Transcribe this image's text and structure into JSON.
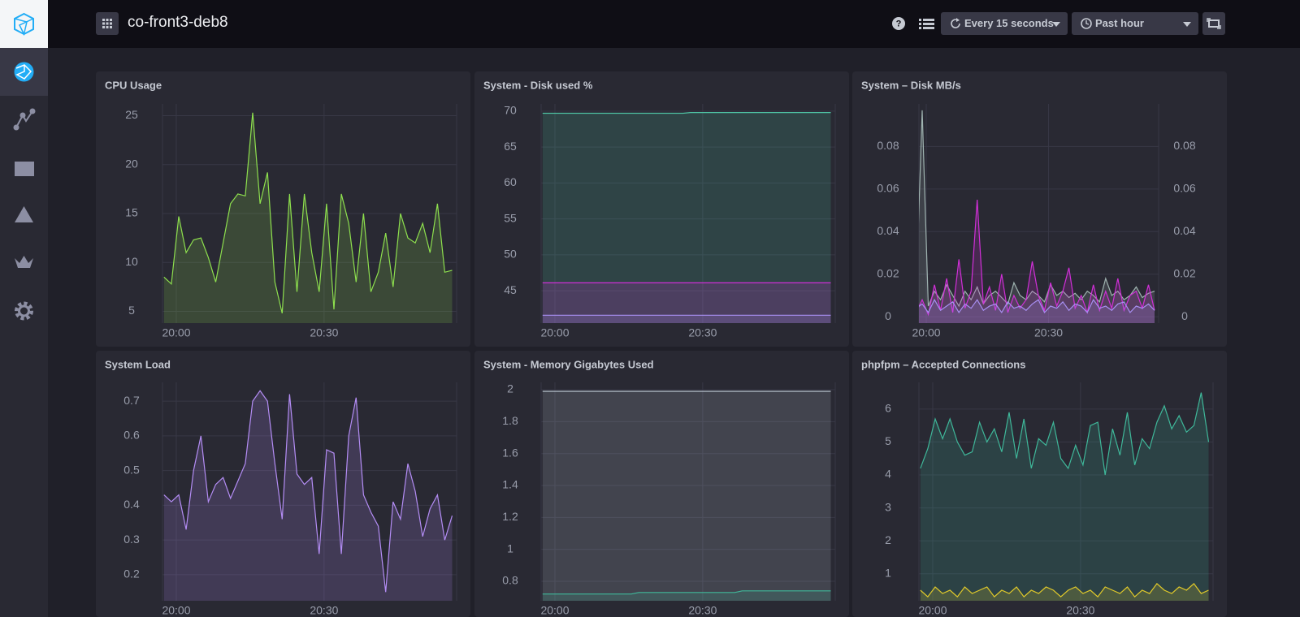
{
  "header": {
    "title": "co-front3-deb8",
    "refresh": "Every 15 seconds",
    "range": "Past hour"
  },
  "chart_data": [
    {
      "type": "line",
      "title": "CPU Usage",
      "fill": true,
      "grid": true,
      "x": [
        -2.5,
        -1,
        0.5,
        2,
        3.5,
        5,
        6.5,
        8,
        9.5,
        11,
        12.5,
        14,
        15.5,
        17,
        18.5,
        20,
        21.5,
        23,
        24.5,
        26,
        27.5,
        29,
        30.5,
        32,
        33.5,
        35,
        36.5,
        38,
        39.5,
        41,
        42.5,
        44,
        45.5,
        47,
        48.5,
        50,
        51.5,
        53,
        54.5,
        56
      ],
      "xlim": [
        -2.8,
        56.9
      ],
      "xticks": [
        {
          "value": 0,
          "label": "20:00"
        },
        {
          "value": 30,
          "label": "20:30"
        }
      ],
      "ylim": [
        3.8,
        26.2
      ],
      "yticks": [
        5,
        10,
        15,
        20,
        25
      ],
      "series": [
        {
          "color": "#8ee04e",
          "values": [
            8.5,
            7.8,
            14.7,
            11,
            12.3,
            12.5,
            10.5,
            8,
            12,
            16,
            17,
            16.8,
            25.3,
            16,
            19.2,
            8,
            4.8,
            17,
            7,
            17,
            11,
            7,
            16,
            5.2,
            17,
            14,
            8,
            15,
            7,
            9,
            13,
            7.5,
            15,
            12.5,
            12,
            14,
            11,
            16,
            9,
            9.2
          ]
        }
      ]
    },
    {
      "type": "line",
      "title": "System - Disk used %",
      "fill": true,
      "grid": true,
      "x": [
        -2.5,
        -1,
        0.5,
        2,
        3.5,
        5,
        6.5,
        8,
        9.5,
        11,
        12.5,
        14,
        15.5,
        17,
        18.5,
        20,
        21.5,
        23,
        24.5,
        26,
        27.5,
        29,
        30.5,
        32,
        33.5,
        35,
        36.5,
        38,
        39.5,
        41,
        42.5,
        44,
        45.5,
        47,
        48.5,
        50,
        51.5,
        53,
        54.5,
        56
      ],
      "xlim": [
        -2.8,
        56.9
      ],
      "xticks": [
        {
          "value": 0,
          "label": "20:00"
        },
        {
          "value": 30,
          "label": "20:30"
        }
      ],
      "ylim": [
        40.5,
        71
      ],
      "yticks": [
        45,
        50,
        55,
        60,
        65,
        70
      ],
      "series": [
        {
          "color": "#4fc2a3",
          "values": [
            69.7,
            69.7,
            69.7,
            69.7,
            69.7,
            69.7,
            69.7,
            69.7,
            69.7,
            69.7,
            69.7,
            69.7,
            69.7,
            69.7,
            69.7,
            69.7,
            69.7,
            69.7,
            69.7,
            69.7,
            69.8,
            69.8,
            69.8,
            69.8,
            69.8,
            69.8,
            69.8,
            69.8,
            69.8,
            69.8,
            69.8,
            69.8,
            69.8,
            69.8,
            69.8,
            69.8,
            69.8,
            69.8,
            69.8,
            69.8
          ]
        },
        {
          "color": "#d12fd8",
          "values": [
            46.1,
            46.1,
            46.1,
            46.1,
            46.1,
            46.1,
            46.1,
            46.1,
            46.1,
            46.1,
            46.1,
            46.1,
            46.1,
            46.1,
            46.1,
            46.1,
            46.1,
            46.1,
            46.1,
            46.1,
            46.1,
            46.1,
            46.1,
            46.1,
            46.1,
            46.1,
            46.1,
            46.1,
            46.1,
            46.1,
            46.1,
            46.1,
            46.1,
            46.1,
            46.1,
            46.1,
            46.1,
            46.1,
            46.1,
            46.1
          ]
        },
        {
          "color": "#a88ff2",
          "values": [
            41.6,
            41.6,
            41.6,
            41.6,
            41.6,
            41.6,
            41.6,
            41.6,
            41.6,
            41.6,
            41.6,
            41.6,
            41.6,
            41.6,
            41.6,
            41.6,
            41.6,
            41.6,
            41.6,
            41.6,
            41.6,
            41.6,
            41.6,
            41.6,
            41.6,
            41.6,
            41.6,
            41.6,
            41.6,
            41.6,
            41.6,
            41.6,
            41.6,
            41.6,
            41.6,
            41.6,
            41.6,
            41.6,
            41.6,
            41.6
          ]
        }
      ]
    },
    {
      "type": "line",
      "title": "System – Disk MB/s",
      "fill": true,
      "grid": true,
      "x": [
        -2.5,
        -1,
        0.5,
        2,
        3.5,
        5,
        6.5,
        8,
        9.5,
        11,
        12.5,
        14,
        15.5,
        17,
        18.5,
        20,
        21.5,
        23,
        24.5,
        26,
        27.5,
        29,
        30.5,
        32,
        33.5,
        35,
        36.5,
        38,
        39.5,
        41,
        42.5,
        44,
        45.5,
        47,
        48.5,
        50,
        51.5,
        53,
        54.5,
        56
      ],
      "xlim": [
        -1.8,
        57
      ],
      "xticks": [
        {
          "value": 0,
          "label": "20:00"
        },
        {
          "value": 30,
          "label": "20:30"
        }
      ],
      "ylim": [
        -0.003,
        0.1
      ],
      "yticks": [
        0,
        0.02,
        0.04,
        0.06,
        0.08
      ],
      "y2lim": [
        -0.003,
        0.1
      ],
      "y2ticks": [
        0,
        0.02,
        0.04,
        0.06,
        0.08
      ],
      "series": [
        {
          "color": "#9fb3b0",
          "values": [
            0.01,
            0.097,
            0.005,
            0.012,
            0.008,
            0.015,
            0.01,
            0.005,
            0.012,
            0.008,
            0.014,
            0.006,
            0.01,
            0.012,
            0.009,
            0.006,
            0.016,
            0.01,
            0.008,
            0.012,
            0.01,
            0.007,
            0.015,
            0.01,
            0.012,
            0.009,
            0.011,
            0.008,
            0.012,
            0.01,
            0.007,
            0.018,
            0.01,
            0.012,
            0.008,
            0.01,
            0.014,
            0.009,
            0.011,
            0.012
          ]
        },
        {
          "color": "#d12fd8",
          "values": [
            0.002,
            0.008,
            0.001,
            0.015,
            0.003,
            0.018,
            0.002,
            0.027,
            0.004,
            0.012,
            0.055,
            0.006,
            0.014,
            0.003,
            0.02,
            0.002,
            0.01,
            0.004,
            0.008,
            0.026,
            0.01,
            0.003,
            0.016,
            0.005,
            0.012,
            0.023,
            0.004,
            0.01,
            0.002,
            0.015,
            0.003,
            0.012,
            0.004,
            0.018,
            0.003,
            0.01,
            0.012,
            0.004,
            0.015,
            0.003
          ]
        },
        {
          "color": "#a88ff2",
          "values": [
            0.004,
            0.006,
            0.002,
            0.008,
            0.003,
            0.005,
            0.007,
            0.002,
            0.006,
            0.004,
            0.008,
            0.003,
            0.005,
            0.006,
            0.002,
            0.007,
            0.004,
            0.005,
            0.003,
            0.006,
            0.008,
            0.002,
            0.005,
            0.004,
            0.007,
            0.003,
            0.006,
            0.005,
            0.002,
            0.008,
            0.004,
            0.005,
            0.003,
            0.006,
            0.007,
            0.002,
            0.005,
            0.004,
            0.006,
            0.003
          ]
        }
      ]
    },
    {
      "type": "line",
      "title": "System Load",
      "fill": true,
      "grid": true,
      "x": [
        -2.5,
        -1,
        0.5,
        2,
        3.5,
        5,
        6.5,
        8,
        9.5,
        11,
        12.5,
        14,
        15.5,
        17,
        18.5,
        20,
        21.5,
        23,
        24.5,
        26,
        27.5,
        29,
        30.5,
        32,
        33.5,
        35,
        36.5,
        38,
        39.5,
        41,
        42.5,
        44,
        45.5,
        47,
        48.5,
        50,
        51.5,
        53,
        54.5,
        56
      ],
      "xlim": [
        -2.8,
        56.9
      ],
      "xticks": [
        {
          "value": 0,
          "label": "20:00"
        },
        {
          "value": 30,
          "label": "20:30"
        }
      ],
      "ylim": [
        0.125,
        0.754
      ],
      "yticks": [
        0.2,
        0.3,
        0.4,
        0.5,
        0.6,
        0.7
      ],
      "series": [
        {
          "color": "#b48df5",
          "values": [
            0.43,
            0.41,
            0.43,
            0.33,
            0.5,
            0.6,
            0.41,
            0.46,
            0.48,
            0.42,
            0.47,
            0.52,
            0.7,
            0.73,
            0.7,
            0.52,
            0.36,
            0.72,
            0.49,
            0.46,
            0.48,
            0.26,
            0.56,
            0.55,
            0.26,
            0.6,
            0.71,
            0.43,
            0.38,
            0.34,
            0.15,
            0.41,
            0.36,
            0.52,
            0.44,
            0.31,
            0.39,
            0.43,
            0.3,
            0.37
          ]
        }
      ]
    },
    {
      "type": "line",
      "title": "System - Memory Gigabytes Used",
      "fill": true,
      "grid": true,
      "x": [
        -2.5,
        -1,
        0.5,
        2,
        3.5,
        5,
        6.5,
        8,
        9.5,
        11,
        12.5,
        14,
        15.5,
        17,
        18.5,
        20,
        21.5,
        23,
        24.5,
        26,
        27.5,
        29,
        30.5,
        32,
        33.5,
        35,
        36.5,
        38,
        39.5,
        41,
        42.5,
        44,
        45.5,
        47,
        48.5,
        50,
        51.5,
        53,
        54.5,
        56
      ],
      "xlim": [
        -2.8,
        56.9
      ],
      "xticks": [
        {
          "value": 0,
          "label": "20:00"
        },
        {
          "value": 30,
          "label": "20:30"
        }
      ],
      "ylim": [
        0.678,
        2.046
      ],
      "yticks": [
        0.8,
        1,
        1.2,
        1.4,
        1.6,
        1.8,
        2
      ],
      "series": [
        {
          "color": "#b9c3cf",
          "values": [
            1.99,
            1.99,
            1.99,
            1.99,
            1.99,
            1.99,
            1.99,
            1.99,
            1.99,
            1.99,
            1.99,
            1.99,
            1.99,
            1.99,
            1.99,
            1.99,
            1.99,
            1.99,
            1.99,
            1.99,
            1.99,
            1.99,
            1.99,
            1.99,
            1.99,
            1.99,
            1.99,
            1.99,
            1.99,
            1.99,
            1.99,
            1.99,
            1.99,
            1.99,
            1.99,
            1.99,
            1.99,
            1.99,
            1.99,
            1.99
          ]
        },
        {
          "color": "#3fb89a",
          "values": [
            0.72,
            0.72,
            0.72,
            0.72,
            0.72,
            0.72,
            0.72,
            0.72,
            0.72,
            0.72,
            0.72,
            0.72,
            0.72,
            0.73,
            0.73,
            0.73,
            0.73,
            0.73,
            0.73,
            0.73,
            0.73,
            0.73,
            0.73,
            0.73,
            0.73,
            0.73,
            0.73,
            0.74,
            0.74,
            0.74,
            0.74,
            0.74,
            0.74,
            0.74,
            0.74,
            0.74,
            0.74,
            0.74,
            0.74,
            0.74
          ]
        }
      ]
    },
    {
      "type": "line",
      "title": "phpfpm – Accepted Connections",
      "fill": true,
      "grid": true,
      "x": [
        -2.5,
        -1,
        0.5,
        2,
        3.5,
        5,
        6.5,
        8,
        9.5,
        11,
        12.5,
        14,
        15.5,
        17,
        18.5,
        20,
        21.5,
        23,
        24.5,
        26,
        27.5,
        29,
        30.5,
        32,
        33.5,
        35,
        36.5,
        38,
        39.5,
        41,
        42.5,
        44,
        45.5,
        47,
        48.5,
        50,
        51.5,
        53,
        54.5,
        56
      ],
      "xlim": [
        -2.8,
        56.9
      ],
      "xticks": [
        {
          "value": 0,
          "label": "20:00"
        },
        {
          "value": 30,
          "label": "20:30"
        }
      ],
      "ylim": [
        0.18,
        6.81
      ],
      "yticks": [
        1,
        2,
        3,
        4,
        5,
        6
      ],
      "series": [
        {
          "color": "#3fb89a",
          "values": [
            4.2,
            4.8,
            5.7,
            5.1,
            5.7,
            5,
            4.6,
            4.7,
            5.6,
            5,
            5.4,
            4.7,
            5.9,
            4.5,
            5.7,
            4.2,
            5.1,
            4.9,
            5.6,
            4.5,
            4.2,
            4.9,
            4.3,
            5.5,
            5.6,
            4,
            5.4,
            4.6,
            5.9,
            4.3,
            5.1,
            4.8,
            5.6,
            6.1,
            5.4,
            5.8,
            5.3,
            5.5,
            6.5,
            5
          ]
        },
        {
          "color": "#e0c92a",
          "values": [
            0.5,
            0.3,
            0.6,
            0.4,
            0.5,
            0.3,
            0.6,
            0.4,
            0.5,
            0.6,
            0.3,
            0.5,
            0.4,
            0.6,
            0.3,
            0.5,
            0.4,
            0.6,
            0.5,
            0.3,
            0.5,
            0.6,
            0.4,
            0.5,
            0.3,
            0.6,
            0.5,
            0.4,
            0.6,
            0.3,
            0.5,
            0.4,
            0.7,
            0.5,
            0.4,
            0.6,
            0.5,
            0.7,
            0.4,
            0.5
          ]
        }
      ]
    }
  ]
}
